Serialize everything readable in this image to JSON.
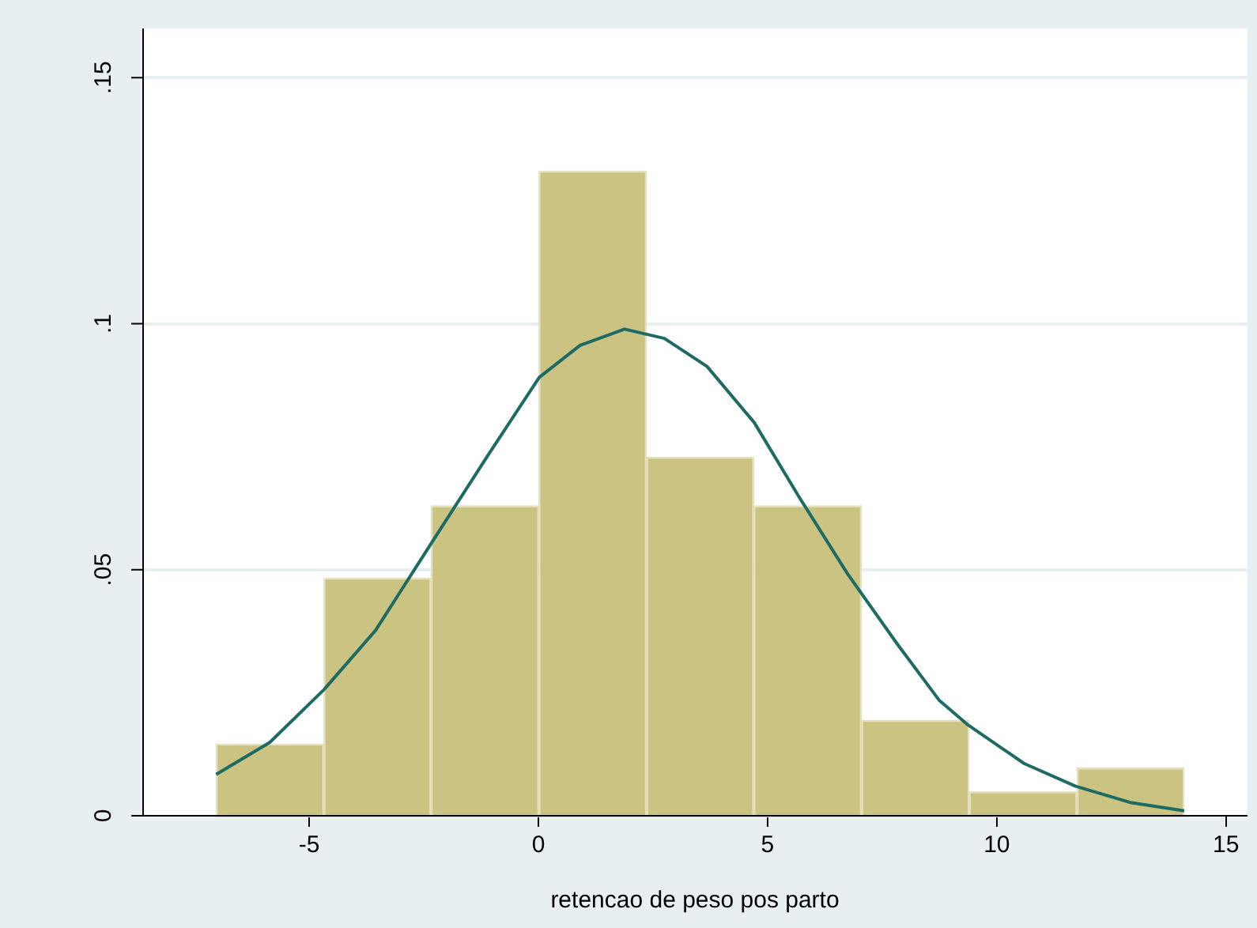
{
  "chart_data": {
    "type": "histogram",
    "xlabel": "retencao de peso pos parto",
    "bins": [
      -7.03,
      -4.68,
      -2.34,
      0.01,
      2.36,
      4.7,
      7.05,
      9.4,
      11.75,
      14.09
    ],
    "values": [
      0.0146,
      0.0483,
      0.063,
      0.131,
      0.0729,
      0.063,
      0.0194,
      0.0049,
      0.0097
    ],
    "color": "#cbc382",
    "series": [
      {
        "type": "line",
        "color": "#1e6b63",
        "x": [
          -7.03,
          -5.86,
          -4.68,
          -3.55,
          -2.32,
          -1.09,
          0.02,
          0.91,
          1.88,
          2.75,
          3.68,
          4.71,
          5.68,
          6.75,
          7.83,
          8.75,
          9.38,
          10.6,
          11.72,
          12.91,
          14.09
        ],
        "values": [
          0.0084,
          0.0149,
          0.0256,
          0.0377,
          0.0556,
          0.0734,
          0.0891,
          0.0956,
          0.0989,
          0.097,
          0.0913,
          0.0799,
          0.0649,
          0.0491,
          0.0349,
          0.0234,
          0.0184,
          0.0106,
          0.006,
          0.0027,
          0.001
        ]
      }
    ],
    "xlim": [
      -8.64,
      15.47
    ],
    "xticks": [
      -5,
      0,
      5,
      10,
      15
    ],
    "ylim": [
      0,
      0.16
    ],
    "yticks": [
      0,
      {
        "value": 0.05,
        "label": ".05"
      },
      {
        "value": 0.1,
        "label": ".1"
      },
      {
        "value": 0.15,
        "label": ".15"
      }
    ],
    "grid": "y",
    "legend": false,
    "marker": "none",
    "line_style": "solid"
  }
}
